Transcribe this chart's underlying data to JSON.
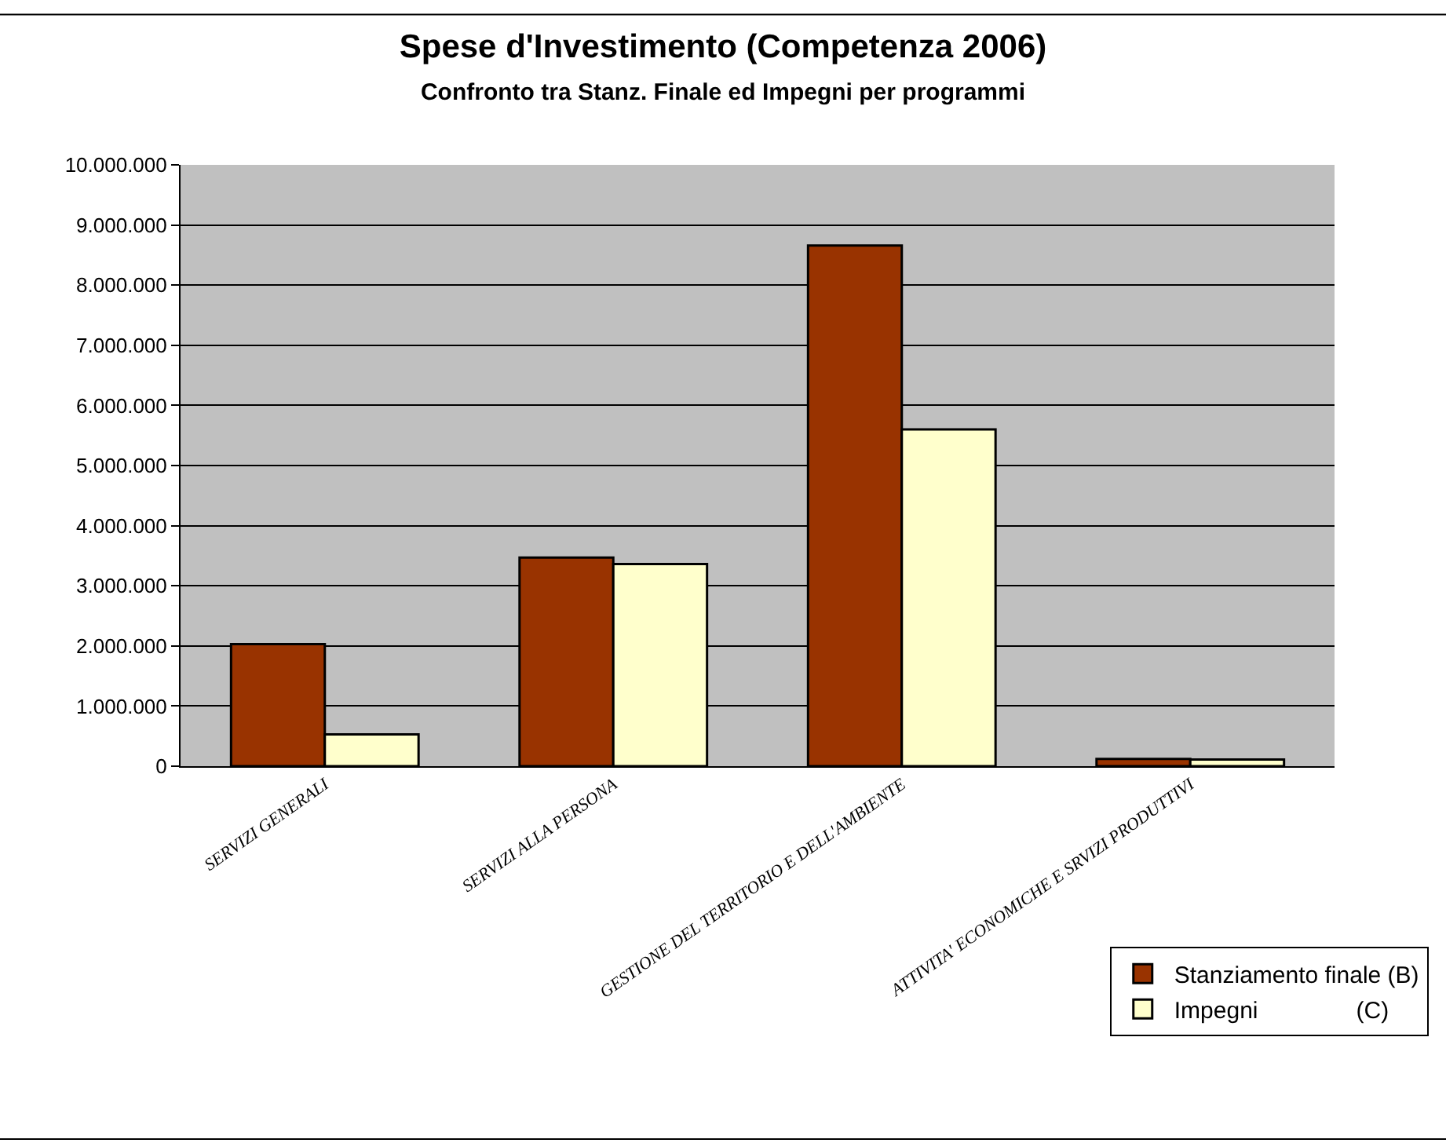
{
  "chart_data": {
    "type": "bar",
    "title": "Spese d'Investimento (Competenza 2006)",
    "subtitle": "Confronto tra Stanz. Finale ed Impegni per programmi",
    "categories": [
      "SERVIZI GENERALI",
      "SERVIZI ALLA PERSONA",
      "GESTIONE DEL TERRITORIO E DELL'AMBIENTE",
      "ATTIVITA' ECONOMICHE E SRVIZI PRODUTTIVI"
    ],
    "series": [
      {
        "name": "Stanziamento finale (B)",
        "color": "#993300",
        "values": [
          2030000,
          3470000,
          8660000,
          120000
        ]
      },
      {
        "name": "Impegni               (C)",
        "color": "#ffffcc",
        "values": [
          530000,
          3360000,
          5600000,
          110000
        ]
      }
    ],
    "ylim": [
      0,
      10000000
    ],
    "yticks": [
      {
        "value": 0,
        "label": "0"
      },
      {
        "value": 1000000,
        "label": "1.000.000"
      },
      {
        "value": 2000000,
        "label": "2.000.000"
      },
      {
        "value": 3000000,
        "label": "3.000.000"
      },
      {
        "value": 4000000,
        "label": "4.000.000"
      },
      {
        "value": 5000000,
        "label": "5.000.000"
      },
      {
        "value": 6000000,
        "label": "6.000.000"
      },
      {
        "value": 7000000,
        "label": "7.000.000"
      },
      {
        "value": 8000000,
        "label": "8.000.000"
      },
      {
        "value": 9000000,
        "label": "9.000.000"
      },
      {
        "value": 10000000,
        "label": "10.000.000"
      }
    ],
    "grid": "y",
    "legend": "bottom right"
  }
}
